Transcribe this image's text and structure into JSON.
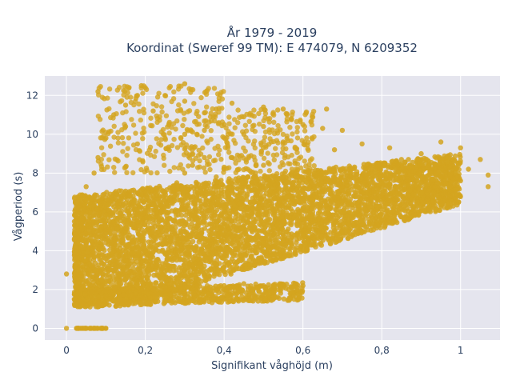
{
  "chart_data": {
    "type": "scatter",
    "title_line1": "År 1979 - 2019",
    "title_line2": "Koordinat (Sweref 99 TM): E 474079, N 6209352",
    "xlabel": "Signifikant våghöjd (m)",
    "ylabel": "Vågperiod (s)",
    "xlim": [
      -0.055,
      1.1
    ],
    "ylim": [
      -0.6,
      13.0
    ],
    "x_ticks": [
      0,
      0.2,
      0.4,
      0.6,
      0.8,
      1.0
    ],
    "x_tick_labels": [
      "0",
      "0,2",
      "0,4",
      "0,6",
      "0,8",
      "1"
    ],
    "y_ticks": [
      0,
      2,
      4,
      6,
      8,
      10,
      12
    ],
    "y_tick_labels": [
      "0",
      "2",
      "4",
      "6",
      "8",
      "10",
      "12"
    ],
    "grid": true,
    "legend": "none",
    "marker_color": "#d4a520",
    "plot_bg": "#e5e5ee",
    "points": [
      [
        0.0,
        0.0
      ],
      [
        0.03,
        0.0
      ],
      [
        0.05,
        0.0
      ],
      [
        0.07,
        0.0
      ],
      [
        0.09,
        0.0
      ],
      [
        0.1,
        0.0
      ],
      [
        0.0,
        2.8
      ],
      [
        0.02,
        1.5
      ],
      [
        0.04,
        1.2
      ],
      [
        0.06,
        1.3
      ],
      [
        0.08,
        1.6
      ],
      [
        0.1,
        1.9
      ],
      [
        0.12,
        1.4
      ],
      [
        0.15,
        1.5
      ],
      [
        0.2,
        1.6
      ],
      [
        0.25,
        1.7
      ],
      [
        0.3,
        1.8
      ],
      [
        0.35,
        1.9
      ],
      [
        0.4,
        2.0
      ],
      [
        0.3,
        2.2
      ],
      [
        0.4,
        2.2
      ],
      [
        0.45,
        2.3
      ],
      [
        0.5,
        2.2
      ],
      [
        0.55,
        2.1
      ],
      [
        0.6,
        2.2
      ],
      [
        0.03,
        3.0
      ],
      [
        0.05,
        3.5
      ],
      [
        0.05,
        4.5
      ],
      [
        0.04,
        5.2
      ],
      [
        0.05,
        6.0
      ],
      [
        0.06,
        6.5
      ],
      [
        0.05,
        7.3
      ],
      [
        0.07,
        8.0
      ],
      [
        0.08,
        8.8
      ],
      [
        0.1,
        9.8
      ],
      [
        0.12,
        11.0
      ],
      [
        0.08,
        12.2
      ],
      [
        0.15,
        10.4
      ],
      [
        0.15,
        11.5
      ],
      [
        0.18,
        12.0
      ],
      [
        0.19,
        12.5
      ],
      [
        0.2,
        12.4
      ],
      [
        0.22,
        11.2
      ],
      [
        0.25,
        12.0
      ],
      [
        0.3,
        12.6
      ],
      [
        0.3,
        11.7
      ],
      [
        0.35,
        11.1
      ],
      [
        0.38,
        11.3
      ],
      [
        0.42,
        11.6
      ],
      [
        0.45,
        10.9
      ],
      [
        0.5,
        11.4
      ],
      [
        0.55,
        11.3
      ],
      [
        0.6,
        10.5
      ],
      [
        0.65,
        10.3
      ],
      [
        0.66,
        11.3
      ],
      [
        0.7,
        10.2
      ],
      [
        0.68,
        9.2
      ],
      [
        0.75,
        9.5
      ],
      [
        0.82,
        9.3
      ],
      [
        0.9,
        9.0
      ],
      [
        0.95,
        9.6
      ],
      [
        1.0,
        9.3
      ],
      [
        0.85,
        8.7
      ],
      [
        0.9,
        8.7
      ],
      [
        0.95,
        8.0
      ],
      [
        1.02,
        8.2
      ],
      [
        1.05,
        8.7
      ],
      [
        1.07,
        7.9
      ],
      [
        1.07,
        7.3
      ],
      [
        1.0,
        7.6
      ],
      [
        0.96,
        7.0
      ],
      [
        0.98,
        6.8
      ],
      [
        0.93,
        6.5
      ],
      [
        0.88,
        6.2
      ],
      [
        0.82,
        5.5
      ],
      [
        0.75,
        5.6
      ],
      [
        0.7,
        5.0
      ],
      [
        0.6,
        4.8
      ],
      [
        0.55,
        4.5
      ],
      [
        0.5,
        4.3
      ],
      [
        0.45,
        3.8
      ],
      [
        0.4,
        3.6
      ],
      [
        0.35,
        3.2
      ],
      [
        0.3,
        3.0
      ],
      [
        0.25,
        2.6
      ],
      [
        0.2,
        2.4
      ],
      [
        0.15,
        2.0
      ],
      [
        0.1,
        1.7
      ],
      [
        0.1,
        3.0
      ],
      [
        0.12,
        4.0
      ],
      [
        0.15,
        5.0
      ],
      [
        0.18,
        5.5
      ],
      [
        0.2,
        6.0
      ],
      [
        0.22,
        6.8
      ],
      [
        0.25,
        7.0
      ],
      [
        0.28,
        7.5
      ],
      [
        0.3,
        8.0
      ],
      [
        0.32,
        8.4
      ],
      [
        0.35,
        8.8
      ],
      [
        0.38,
        7.8
      ],
      [
        0.4,
        8.3
      ],
      [
        0.42,
        8.8
      ],
      [
        0.45,
        7.5
      ],
      [
        0.48,
        8.0
      ],
      [
        0.5,
        8.4
      ],
      [
        0.52,
        7.2
      ],
      [
        0.55,
        7.8
      ],
      [
        0.58,
        8.5
      ],
      [
        0.6,
        7.0
      ],
      [
        0.62,
        7.5
      ],
      [
        0.65,
        8.0
      ],
      [
        0.68,
        6.8
      ],
      [
        0.7,
        7.3
      ],
      [
        0.72,
        7.8
      ],
      [
        0.75,
        6.5
      ],
      [
        0.78,
        7.0
      ],
      [
        0.8,
        7.5
      ],
      [
        0.82,
        6.6
      ],
      [
        0.85,
        7.2
      ],
      [
        0.88,
        6.9
      ],
      [
        0.9,
        7.5
      ],
      [
        0.92,
        7.1
      ],
      [
        0.95,
        7.4
      ],
      [
        0.3,
        5.0
      ],
      [
        0.35,
        5.5
      ],
      [
        0.4,
        6.0
      ],
      [
        0.45,
        6.0
      ],
      [
        0.5,
        6.2
      ],
      [
        0.55,
        6.0
      ],
      [
        0.6,
        6.2
      ],
      [
        0.2,
        4.0
      ],
      [
        0.25,
        4.5
      ],
      [
        0.3,
        4.0
      ],
      [
        0.15,
        3.5
      ],
      [
        0.18,
        9.5
      ],
      [
        0.25,
        9.8
      ],
      [
        0.3,
        10.0
      ],
      [
        0.35,
        10.2
      ],
      [
        0.4,
        10.5
      ],
      [
        0.45,
        10.0
      ],
      [
        0.5,
        10.4
      ],
      [
        0.55,
        9.6
      ]
    ]
  }
}
